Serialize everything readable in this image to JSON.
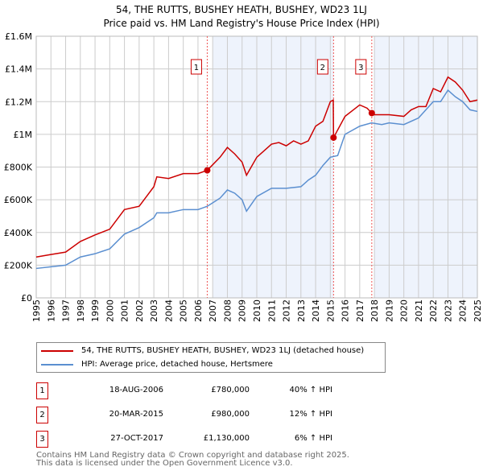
{
  "title": "54, THE RUTTS, BUSHEY HEATH, BUSHEY, WD23 1LJ",
  "subtitle": "Price paid vs. HM Land Registry's House Price Index (HPI)",
  "colors": {
    "property": "#cc0000",
    "hpi": "#5b8fd0",
    "shade": "#eef3fc",
    "grid": "#cccccc"
  },
  "chart_data": {
    "type": "line",
    "title": "54, THE RUTTS, BUSHEY HEATH, BUSHEY, WD23 1LJ — Price paid vs. HM Land Registry's House Price Index (HPI)",
    "xlim": [
      1995,
      2025
    ],
    "ylim": [
      0,
      1600000
    ],
    "x_ticks": [
      "1995",
      "1996",
      "1997",
      "1998",
      "1999",
      "2000",
      "2001",
      "2002",
      "2003",
      "2004",
      "2005",
      "2006",
      "2007",
      "2008",
      "2009",
      "2010",
      "2011",
      "2012",
      "2013",
      "2014",
      "2015",
      "2016",
      "2017",
      "2018",
      "2019",
      "2020",
      "2021",
      "2022",
      "2023",
      "2024",
      "2025"
    ],
    "y_ticks": [
      {
        "v": 0,
        "l": "£0"
      },
      {
        "v": 200000,
        "l": "£200K"
      },
      {
        "v": 400000,
        "l": "£400K"
      },
      {
        "v": 600000,
        "l": "£600K"
      },
      {
        "v": 800000,
        "l": "£800K"
      },
      {
        "v": 1000000,
        "l": "£1M"
      },
      {
        "v": 1200000,
        "l": "£1.2M"
      },
      {
        "v": 1400000,
        "l": "£1.4M"
      },
      {
        "v": 1600000,
        "l": "£1.6M"
      }
    ],
    "shaded_ranges": [
      [
        2007,
        2015.2
      ],
      [
        2018,
        2025
      ]
    ],
    "series": [
      {
        "name": "54, THE RUTTS, BUSHEY HEATH, BUSHEY, WD23 1LJ (detached house)",
        "color": "#cc0000",
        "x": [
          1995,
          1996,
          1997,
          1998,
          1999,
          2000,
          2001,
          2002,
          2002.5,
          2003,
          2003.2,
          2004,
          2005,
          2006,
          2006.63,
          2007.5,
          2008,
          2008.5,
          2009,
          2009.3,
          2010,
          2011,
          2011.5,
          2012,
          2012.5,
          2013,
          2013.5,
          2014,
          2014.5,
          2015,
          2015.2,
          2015.22,
          2016,
          2017,
          2017.5,
          2017.82,
          2018,
          2019,
          2020,
          2020.5,
          2021,
          2021.5,
          2022,
          2022.5,
          2023,
          2023.5,
          2024,
          2024.5,
          2025
        ],
        "values": [
          250000,
          265000,
          280000,
          345000,
          385000,
          420000,
          540000,
          560000,
          620000,
          680000,
          740000,
          730000,
          760000,
          760000,
          780000,
          860000,
          920000,
          880000,
          830000,
          750000,
          860000,
          940000,
          950000,
          930000,
          960000,
          940000,
          960000,
          1050000,
          1080000,
          1200000,
          1210000,
          980000,
          1110000,
          1180000,
          1160000,
          1130000,
          1120000,
          1120000,
          1110000,
          1150000,
          1170000,
          1170000,
          1280000,
          1260000,
          1350000,
          1320000,
          1270000,
          1200000,
          1210000
        ]
      },
      {
        "name": "HPI: Average price, detached house, Hertsmere",
        "color": "#5b8fd0",
        "x": [
          1995,
          1996,
          1997,
          1998,
          1999,
          2000,
          2001,
          2002,
          2003,
          2003.2,
          2004,
          2005,
          2006,
          2006.63,
          2007.5,
          2008,
          2008.5,
          2009,
          2009.3,
          2010,
          2011,
          2012,
          2013,
          2013.5,
          2014,
          2014.5,
          2015,
          2015.5,
          2016,
          2017,
          2017.8,
          2018.5,
          2019,
          2020,
          2021,
          2022,
          2022.5,
          2023,
          2023.5,
          2024,
          2024.5,
          2025
        ],
        "values": [
          180000,
          190000,
          200000,
          250000,
          270000,
          300000,
          390000,
          430000,
          490000,
          520000,
          520000,
          540000,
          540000,
          560000,
          610000,
          660000,
          640000,
          600000,
          530000,
          620000,
          670000,
          670000,
          680000,
          720000,
          750000,
          810000,
          860000,
          870000,
          1000000,
          1050000,
          1070000,
          1060000,
          1070000,
          1060000,
          1100000,
          1200000,
          1200000,
          1270000,
          1230000,
          1200000,
          1150000,
          1140000
        ]
      }
    ],
    "sales": [
      {
        "label": "1",
        "x": 2006.63,
        "value": 780000,
        "date": "18-AUG-2006",
        "price": "£780,000",
        "hpi": "40% ↑ HPI"
      },
      {
        "label": "2",
        "x": 2015.22,
        "value": 980000,
        "date": "20-MAR-2015",
        "price": "£980,000",
        "hpi": "12% ↑ HPI"
      },
      {
        "label": "3",
        "x": 2017.82,
        "value": 1130000,
        "date": "27-OCT-2017",
        "price": "£1,130,000",
        "hpi": "6% ↑ HPI"
      }
    ]
  },
  "legend": {
    "property": "54, THE RUTTS, BUSHEY HEATH, BUSHEY, WD23 1LJ (detached house)",
    "hpi": "HPI: Average price, detached house, Hertsmere"
  },
  "footer": {
    "line1": "Contains HM Land Registry data © Crown copyright and database right 2025.",
    "line2": "This data is licensed under the Open Government Licence v3.0."
  }
}
